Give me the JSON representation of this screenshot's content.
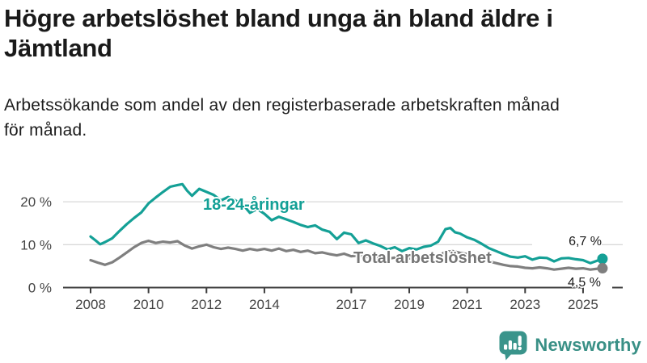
{
  "header": {
    "title_line1": "Högre arbetslöshet bland unga än bland äldre i",
    "title_line2": "Jämtland",
    "subtitle_line1": "Arbetssökande som andel av den registerbaserade arbetskraften månad",
    "subtitle_line2": "för månad."
  },
  "chart_data": {
    "type": "line",
    "x_domain": [
      2008,
      2025.67
    ],
    "ylim": [
      0,
      26
    ],
    "grid": "horizontal",
    "x_ticks": [
      2008,
      2010,
      2012,
      2014,
      2017,
      2019,
      2021,
      2023,
      2025
    ],
    "x_tick_labels": [
      "2008",
      "2010",
      "2012",
      "2014",
      "2017",
      "2019",
      "2021",
      "2023",
      "2025"
    ],
    "y_ticks": [
      0,
      10,
      20
    ],
    "y_tick_labels": [
      "0 %",
      "10 %",
      "20 %"
    ],
    "y_gridlines": [
      10,
      20
    ],
    "axis_color": "#3c3c3c",
    "gridline_color": "#d8d8d8",
    "series": [
      {
        "name": "18-24-åringar",
        "color": "#14a096",
        "end_label": "6,7 %",
        "end_value": 6.7,
        "points": [
          [
            2008.0,
            11.9
          ],
          [
            2008.17,
            11.0
          ],
          [
            2008.33,
            10.1
          ],
          [
            2008.5,
            10.6
          ],
          [
            2008.75,
            11.5
          ],
          [
            2009.0,
            13.2
          ],
          [
            2009.25,
            14.8
          ],
          [
            2009.5,
            16.2
          ],
          [
            2009.75,
            17.5
          ],
          [
            2010.0,
            19.6
          ],
          [
            2010.25,
            21.0
          ],
          [
            2010.5,
            22.3
          ],
          [
            2010.75,
            23.5
          ],
          [
            2011.0,
            23.9
          ],
          [
            2011.17,
            24.1
          ],
          [
            2011.33,
            22.6
          ],
          [
            2011.5,
            21.4
          ],
          [
            2011.75,
            23.0
          ],
          [
            2012.0,
            22.3
          ],
          [
            2012.25,
            21.6
          ],
          [
            2012.5,
            20.3
          ],
          [
            2012.75,
            21.1
          ],
          [
            2013.0,
            20.3
          ],
          [
            2013.25,
            19.4
          ],
          [
            2013.5,
            17.4
          ],
          [
            2013.75,
            18.3
          ],
          [
            2014.0,
            17.2
          ],
          [
            2014.25,
            15.7
          ],
          [
            2014.5,
            16.5
          ],
          [
            2014.75,
            15.9
          ],
          [
            2015.0,
            15.3
          ],
          [
            2015.25,
            14.6
          ],
          [
            2015.5,
            14.1
          ],
          [
            2015.75,
            14.5
          ],
          [
            2016.0,
            13.5
          ],
          [
            2016.25,
            13.0
          ],
          [
            2016.5,
            11.3
          ],
          [
            2016.75,
            12.8
          ],
          [
            2017.0,
            12.4
          ],
          [
            2017.25,
            10.4
          ],
          [
            2017.5,
            11.0
          ],
          [
            2017.75,
            10.3
          ],
          [
            2018.0,
            9.7
          ],
          [
            2018.25,
            8.9
          ],
          [
            2018.5,
            9.4
          ],
          [
            2018.75,
            8.5
          ],
          [
            2019.0,
            9.2
          ],
          [
            2019.25,
            8.9
          ],
          [
            2019.5,
            9.5
          ],
          [
            2019.75,
            9.8
          ],
          [
            2020.0,
            10.7
          ],
          [
            2020.25,
            13.6
          ],
          [
            2020.42,
            13.9
          ],
          [
            2020.58,
            12.9
          ],
          [
            2020.75,
            12.6
          ],
          [
            2021.0,
            11.7
          ],
          [
            2021.25,
            11.1
          ],
          [
            2021.5,
            10.2
          ],
          [
            2021.75,
            9.2
          ],
          [
            2022.0,
            8.5
          ],
          [
            2022.25,
            7.8
          ],
          [
            2022.5,
            7.2
          ],
          [
            2022.75,
            7.0
          ],
          [
            2023.0,
            7.3
          ],
          [
            2023.25,
            6.5
          ],
          [
            2023.5,
            7.0
          ],
          [
            2023.75,
            6.9
          ],
          [
            2024.0,
            6.1
          ],
          [
            2024.25,
            6.8
          ],
          [
            2024.5,
            6.9
          ],
          [
            2024.75,
            6.6
          ],
          [
            2025.0,
            6.4
          ],
          [
            2025.25,
            5.7
          ],
          [
            2025.5,
            6.3
          ],
          [
            2025.67,
            6.7
          ]
        ]
      },
      {
        "name": "Total arbetslöshet",
        "color": "#7f7f7f",
        "end_label": "4,5 %",
        "end_value": 4.5,
        "points": [
          [
            2008.0,
            6.4
          ],
          [
            2008.25,
            5.8
          ],
          [
            2008.5,
            5.3
          ],
          [
            2008.75,
            5.9
          ],
          [
            2009.0,
            7.0
          ],
          [
            2009.25,
            8.2
          ],
          [
            2009.5,
            9.4
          ],
          [
            2009.75,
            10.4
          ],
          [
            2010.0,
            10.9
          ],
          [
            2010.25,
            10.4
          ],
          [
            2010.5,
            10.7
          ],
          [
            2010.75,
            10.5
          ],
          [
            2011.0,
            10.8
          ],
          [
            2011.25,
            9.8
          ],
          [
            2011.5,
            9.1
          ],
          [
            2011.75,
            9.6
          ],
          [
            2012.0,
            10.0
          ],
          [
            2012.25,
            9.4
          ],
          [
            2012.5,
            9.0
          ],
          [
            2012.75,
            9.3
          ],
          [
            2013.0,
            9.0
          ],
          [
            2013.25,
            8.6
          ],
          [
            2013.5,
            9.0
          ],
          [
            2013.75,
            8.7
          ],
          [
            2014.0,
            9.0
          ],
          [
            2014.25,
            8.6
          ],
          [
            2014.5,
            9.1
          ],
          [
            2014.75,
            8.5
          ],
          [
            2015.0,
            8.8
          ],
          [
            2015.25,
            8.3
          ],
          [
            2015.5,
            8.6
          ],
          [
            2015.75,
            8.0
          ],
          [
            2016.0,
            8.2
          ],
          [
            2016.25,
            7.8
          ],
          [
            2016.5,
            7.5
          ],
          [
            2016.75,
            7.9
          ],
          [
            2017.0,
            7.3
          ],
          [
            2017.25,
            7.5
          ],
          [
            2017.5,
            7.1
          ],
          [
            2017.75,
            7.2
          ],
          [
            2018.0,
            6.9
          ],
          [
            2018.25,
            6.7
          ],
          [
            2018.5,
            7.0
          ],
          [
            2018.75,
            6.6
          ],
          [
            2019.0,
            6.8
          ],
          [
            2019.25,
            6.6
          ],
          [
            2019.5,
            6.9
          ],
          [
            2019.75,
            7.0
          ],
          [
            2020.0,
            7.4
          ],
          [
            2020.25,
            8.3
          ],
          [
            2020.5,
            8.5
          ],
          [
            2020.75,
            8.1
          ],
          [
            2021.0,
            7.8
          ],
          [
            2021.25,
            7.2
          ],
          [
            2021.5,
            6.7
          ],
          [
            2021.75,
            6.1
          ],
          [
            2022.0,
            5.7
          ],
          [
            2022.25,
            5.3
          ],
          [
            2022.5,
            5.0
          ],
          [
            2022.75,
            4.9
          ],
          [
            2023.0,
            4.6
          ],
          [
            2023.25,
            4.5
          ],
          [
            2023.5,
            4.7
          ],
          [
            2023.75,
            4.5
          ],
          [
            2024.0,
            4.2
          ],
          [
            2024.25,
            4.4
          ],
          [
            2024.5,
            4.6
          ],
          [
            2024.75,
            4.4
          ],
          [
            2025.0,
            4.5
          ],
          [
            2025.25,
            4.2
          ],
          [
            2025.5,
            4.4
          ],
          [
            2025.67,
            4.5
          ]
        ]
      }
    ]
  },
  "logo": {
    "wordmark": "Newsworthy",
    "icon": "newsworthy-bubble-barchart-icon",
    "color": "#399086"
  }
}
